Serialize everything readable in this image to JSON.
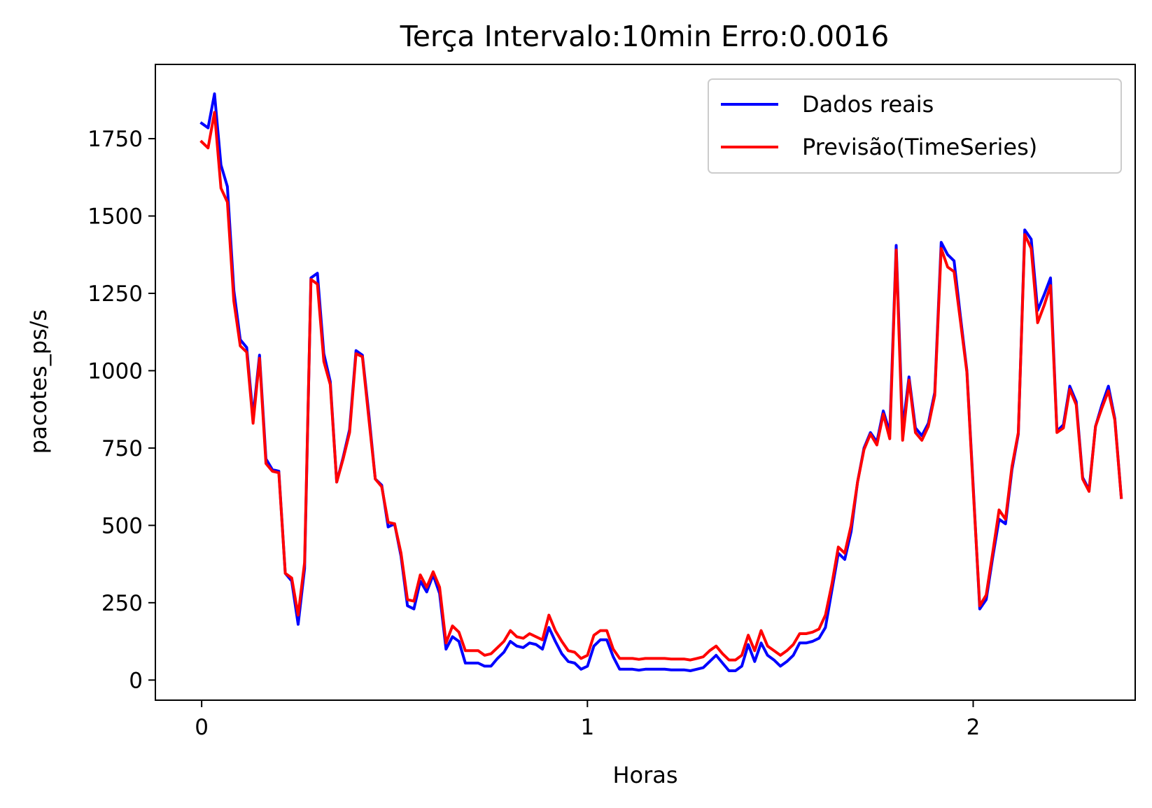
{
  "chart_data": {
    "type": "line",
    "title": "Terça Intervalo:10min Erro:0.0016",
    "xlabel": "Horas",
    "ylabel": "pacotes_ps/s",
    "xlim": [
      -0.12,
      2.42
    ],
    "ylim": [
      -65,
      1990
    ],
    "x_ticks": [
      0,
      1,
      2
    ],
    "y_ticks": [
      0,
      250,
      500,
      750,
      1000,
      1250,
      1500,
      1750
    ],
    "grid": false,
    "legend_position": "upper-right",
    "x_step": 0.01667,
    "series": [
      {
        "name": "Dados reais",
        "color": "#0000ff",
        "values": [
          1800,
          1785,
          1895,
          1665,
          1595,
          1260,
          1100,
          1075,
          850,
          1050,
          715,
          680,
          675,
          345,
          320,
          180,
          360,
          1300,
          1315,
          1055,
          965,
          640,
          720,
          810,
          1065,
          1050,
          860,
          650,
          630,
          495,
          505,
          400,
          240,
          230,
          320,
          285,
          340,
          280,
          100,
          140,
          125,
          55,
          55,
          55,
          45,
          45,
          70,
          90,
          125,
          110,
          105,
          120,
          115,
          100,
          170,
          125,
          85,
          60,
          55,
          35,
          45,
          110,
          130,
          130,
          75,
          35,
          35,
          35,
          32,
          35,
          35,
          35,
          35,
          33,
          33,
          33,
          30,
          35,
          40,
          60,
          80,
          55,
          30,
          30,
          45,
          115,
          60,
          120,
          80,
          65,
          45,
          60,
          80,
          120,
          120,
          125,
          135,
          170,
          290,
          410,
          390,
          480,
          640,
          750,
          800,
          770,
          870,
          800,
          1405,
          810,
          980,
          815,
          790,
          830,
          930,
          1415,
          1375,
          1355,
          1175,
          1000,
          620,
          230,
          260,
          395,
          520,
          505,
          680,
          795,
          1455,
          1425,
          1195,
          1245,
          1300,
          805,
          825,
          950,
          900,
          655,
          615,
          820,
          890,
          950,
          845,
          590
        ]
      },
      {
        "name": "Previsão(TimeSeries)",
        "color": "#ff0000",
        "values": [
          1740,
          1720,
          1835,
          1590,
          1545,
          1225,
          1080,
          1060,
          830,
          1040,
          700,
          675,
          670,
          345,
          330,
          210,
          380,
          1295,
          1280,
          1030,
          955,
          640,
          715,
          800,
          1055,
          1045,
          845,
          650,
          625,
          510,
          505,
          410,
          260,
          255,
          340,
          300,
          350,
          300,
          120,
          175,
          155,
          95,
          95,
          95,
          80,
          85,
          105,
          125,
          160,
          140,
          135,
          150,
          140,
          130,
          210,
          160,
          125,
          95,
          90,
          70,
          80,
          145,
          160,
          160,
          100,
          70,
          70,
          70,
          67,
          70,
          70,
          70,
          70,
          68,
          68,
          68,
          65,
          70,
          75,
          95,
          110,
          85,
          65,
          65,
          80,
          145,
          95,
          160,
          110,
          95,
          80,
          95,
          115,
          150,
          150,
          155,
          165,
          210,
          310,
          430,
          410,
          500,
          640,
          745,
          795,
          760,
          860,
          780,
          1390,
          775,
          970,
          800,
          775,
          820,
          920,
          1395,
          1335,
          1320,
          1160,
          995,
          610,
          240,
          275,
          410,
          550,
          520,
          690,
          800,
          1440,
          1395,
          1155,
          1210,
          1275,
          800,
          815,
          940,
          890,
          650,
          610,
          820,
          880,
          935,
          840,
          590
        ]
      }
    ]
  }
}
